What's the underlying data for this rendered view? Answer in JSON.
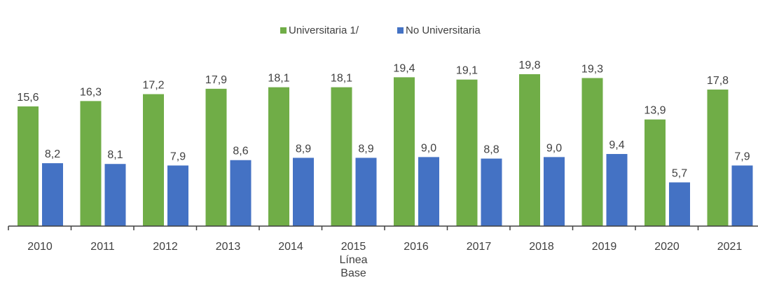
{
  "chart_data": {
    "type": "bar",
    "categories": [
      "2010",
      "2011",
      "2012",
      "2013",
      "2014",
      "2015\nLínea\nBase",
      "2016",
      "2017",
      "2018",
      "2019",
      "2020",
      "2021"
    ],
    "series": [
      {
        "name": "Universitaria 1/",
        "color": "#70ad47",
        "values": [
          15.6,
          16.3,
          17.2,
          17.9,
          18.1,
          18.1,
          19.4,
          19.1,
          19.8,
          19.3,
          13.9,
          17.8
        ],
        "value_labels": [
          "15,6",
          "16,3",
          "17,2",
          "17,9",
          "18,1",
          "18,1",
          "19,4",
          "19,1",
          "19,8",
          "19,3",
          "13,9",
          "17,8"
        ]
      },
      {
        "name": "No Universitaria",
        "color": "#4472c4",
        "values": [
          8.2,
          8.1,
          7.9,
          8.6,
          8.9,
          8.9,
          9.0,
          8.8,
          9.0,
          9.4,
          5.7,
          7.9
        ],
        "value_labels": [
          "8,2",
          "8,1",
          "7,9",
          "8,6",
          "8,9",
          "8,9",
          "9,0",
          "8,8",
          "9,0",
          "9,4",
          "5,7",
          "7,9"
        ]
      }
    ],
    "legend": "top"
  }
}
